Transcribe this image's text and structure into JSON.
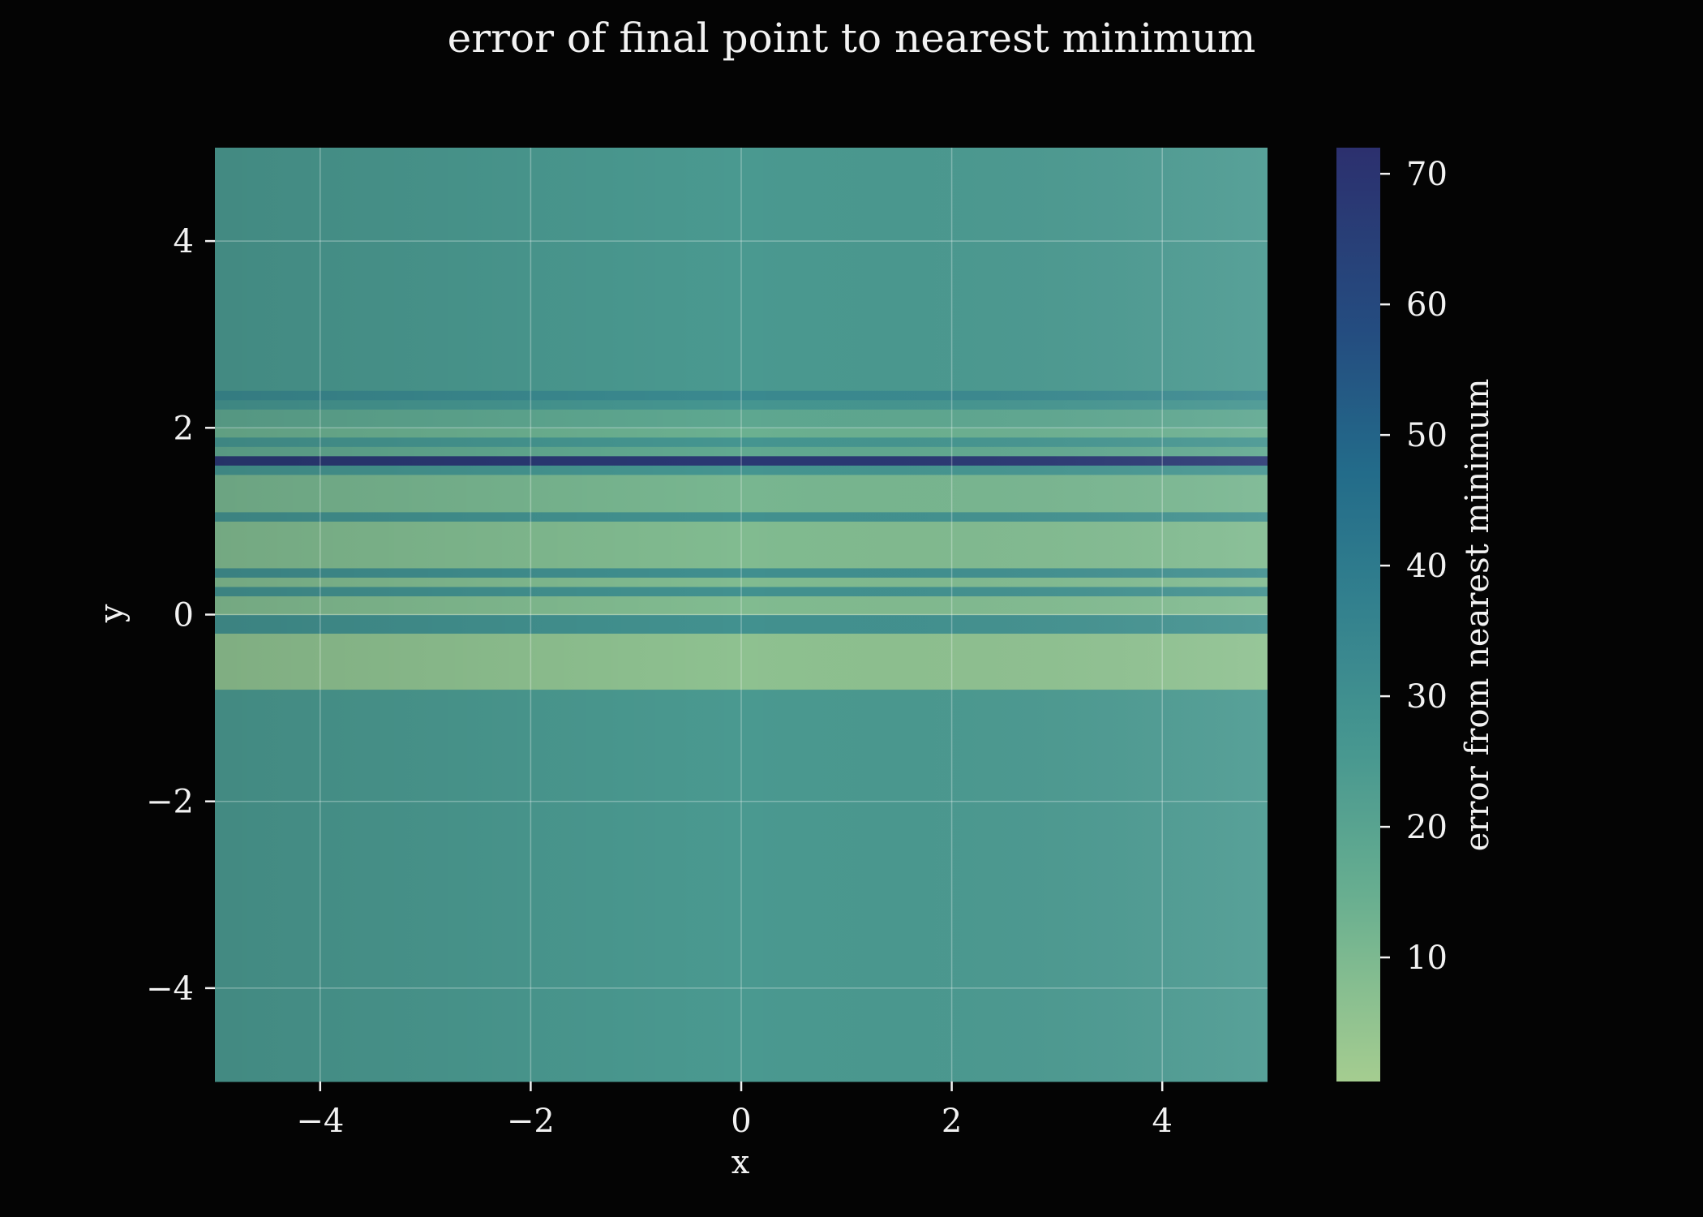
{
  "chart_data": {
    "type": "heatmap",
    "title": "error of final point to nearest minimum",
    "xlabel": "x",
    "ylabel": "y",
    "xlim": [
      -5,
      5
    ],
    "ylim": [
      -5,
      5
    ],
    "grid": true,
    "x_ticks": [
      -4,
      -2,
      0,
      2,
      4
    ],
    "y_ticks": [
      -4,
      -2,
      0,
      2,
      4
    ],
    "x_tick_labels": [
      "−4",
      "−2",
      "0",
      "2",
      "4"
    ],
    "y_tick_labels": [
      "−4",
      "−2",
      "0",
      "2",
      "4"
    ],
    "colormap": "crest",
    "colorbar": {
      "label": "error from nearest minimum",
      "range": [
        0.5,
        72
      ],
      "ticks": [
        10,
        20,
        30,
        40,
        50,
        60,
        70
      ],
      "tick_labels": [
        "10",
        "20",
        "30",
        "40",
        "50",
        "60",
        "70"
      ]
    },
    "note_gradient": "error increases slightly from left to right within each band",
    "bands": [
      {
        "y_from": -5.0,
        "y_to": -0.8,
        "value": 25
      },
      {
        "y_from": -0.8,
        "y_to": -0.2,
        "value": 6
      },
      {
        "y_from": -0.2,
        "y_to": 0.0,
        "value": 29
      },
      {
        "y_from": 0.0,
        "y_to": 0.2,
        "value": 9
      },
      {
        "y_from": 0.2,
        "y_to": 0.3,
        "value": 29
      },
      {
        "y_from": 0.3,
        "y_to": 0.4,
        "value": 9
      },
      {
        "y_from": 0.4,
        "y_to": 0.5,
        "value": 30
      },
      {
        "y_from": 0.5,
        "y_to": 1.0,
        "value": 9
      },
      {
        "y_from": 1.0,
        "y_to": 1.1,
        "value": 29
      },
      {
        "y_from": 1.1,
        "y_to": 1.5,
        "value": 11
      },
      {
        "y_from": 1.5,
        "y_to": 1.6,
        "value": 27
      },
      {
        "y_from": 1.6,
        "y_to": 1.7,
        "value": 68
      },
      {
        "y_from": 1.7,
        "y_to": 1.8,
        "value": 17
      },
      {
        "y_from": 1.8,
        "y_to": 1.9,
        "value": 27
      },
      {
        "y_from": 1.9,
        "y_to": 2.0,
        "value": 14
      },
      {
        "y_from": 2.0,
        "y_to": 2.2,
        "value": 18
      },
      {
        "y_from": 2.2,
        "y_to": 2.3,
        "value": 27
      },
      {
        "y_from": 2.3,
        "y_to": 2.4,
        "value": 33
      },
      {
        "y_from": 2.4,
        "y_to": 5.0,
        "value": 25
      }
    ]
  }
}
